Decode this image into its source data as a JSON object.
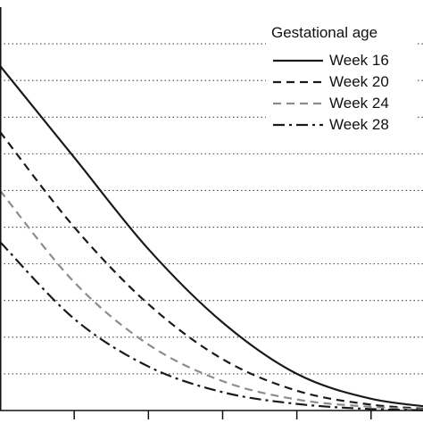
{
  "chart_data": {
    "type": "line",
    "grid": "horizontal dotted",
    "legend": {
      "placement": "top-right",
      "title": "Gestational age"
    },
    "x": [
      0,
      1,
      2,
      3,
      4,
      5,
      6
    ],
    "series": [
      {
        "name": "Week 16",
        "color": "#1a1a1a",
        "dash": "solid",
        "values": [
          47.0,
          34.5,
          22.0,
          12.0,
          5.0,
          1.6,
          0.3
        ]
      },
      {
        "name": "Week 20",
        "color": "#1a1a1a",
        "dash": "dashed",
        "values": [
          38.0,
          25.0,
          14.5,
          7.0,
          2.7,
          0.8,
          0.1
        ]
      },
      {
        "name": "Week 24",
        "color": "#8c8c8c",
        "dash": "dashed",
        "values": [
          30.0,
          17.5,
          9.0,
          4.0,
          1.5,
          0.5,
          0.05
        ]
      },
      {
        "name": "Week 28",
        "color": "#1a1a1a",
        "dash": "dash-dot",
        "values": [
          23.0,
          12.5,
          6.0,
          2.5,
          0.9,
          0.2,
          0.0
        ]
      }
    ],
    "gridlines_y": [
      5,
      10,
      15,
      20,
      25,
      30,
      35,
      40,
      45,
      50
    ],
    "x_ticks": [
      1,
      2,
      3,
      4,
      5
    ],
    "ylim": [
      0,
      55
    ],
    "xlim": [
      0,
      5.7
    ]
  }
}
